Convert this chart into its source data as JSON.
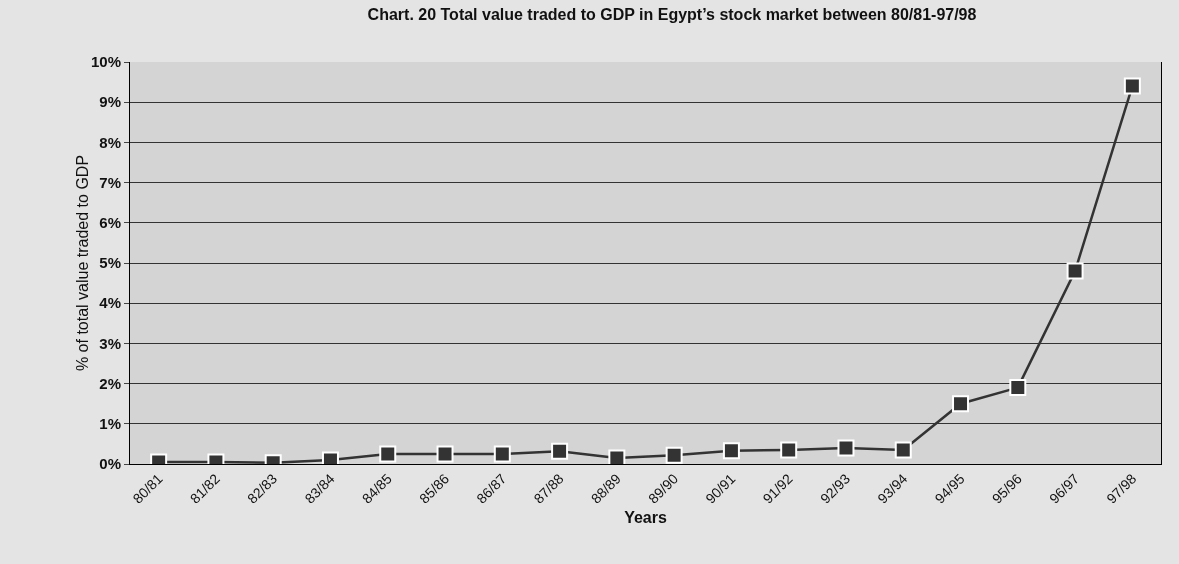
{
  "chart_data": {
    "type": "line",
    "title": "Chart. 20 Total value traded to GDP in Egypt’s stock market between 80/81-97/98",
    "xlabel": "Years",
    "ylabel": "% of total value traded to GDP",
    "categories": [
      "80/81",
      "81/82",
      "82/83",
      "83/84",
      "84/85",
      "85/86",
      "86/87",
      "87/88",
      "88/89",
      "89/90",
      "90/91",
      "91/92",
      "92/93",
      "93/94",
      "94/95",
      "95/96",
      "96/97",
      "97/98"
    ],
    "series": [
      {
        "color": "#333333",
        "values": [
          0.05,
          0.05,
          0.03,
          0.1,
          0.25,
          0.25,
          0.25,
          0.32,
          0.15,
          0.22,
          0.33,
          0.35,
          0.4,
          0.35,
          1.5,
          1.9,
          4.8,
          9.4
        ]
      }
    ],
    "ylim": [
      0,
      10
    ],
    "yticks": [
      {
        "value": 0,
        "label": "0%"
      },
      {
        "value": 1,
        "label": "1%"
      },
      {
        "value": 2,
        "label": "2%"
      },
      {
        "value": 3,
        "label": "3%"
      },
      {
        "value": 4,
        "label": "4%"
      },
      {
        "value": 5,
        "label": "5%"
      },
      {
        "value": 6,
        "label": "6%"
      },
      {
        "value": 7,
        "label": "7%"
      },
      {
        "value": 8,
        "label": "8%"
      },
      {
        "value": 9,
        "label": "9%"
      },
      {
        "value": 10,
        "label": "10%"
      }
    ],
    "grid": "y",
    "marker": "square",
    "line_style": "solid"
  }
}
